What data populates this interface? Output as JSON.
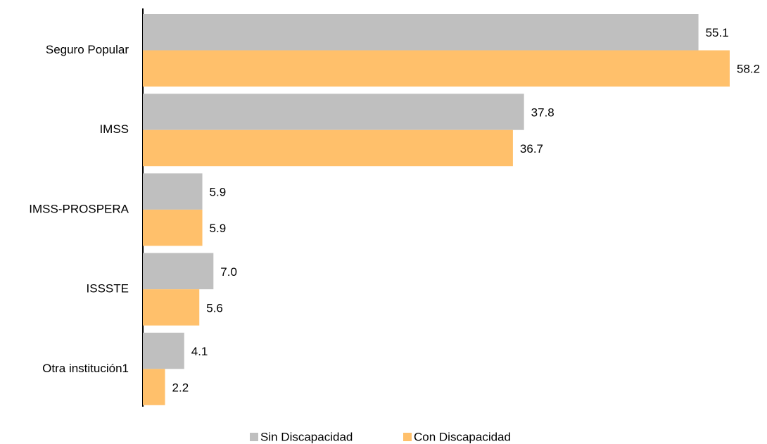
{
  "chart_data": {
    "type": "bar",
    "orientation": "horizontal",
    "categories": [
      "Seguro Popular",
      "IMSS",
      "IMSS-PROSPERA",
      "ISSSTE",
      "Otra institución1"
    ],
    "series": [
      {
        "name": "Sin Discapacidad",
        "color": "#bfbfbf",
        "values": [
          55.1,
          37.8,
          5.9,
          7.0,
          4.1
        ],
        "value_labels": [
          "55.1",
          "37.8",
          "5.9",
          "7.0",
          "4.1"
        ]
      },
      {
        "name": "Con Discapacidad",
        "color": "#ffc06b",
        "values": [
          58.2,
          36.7,
          5.9,
          5.6,
          2.2
        ],
        "value_labels": [
          "58.2",
          "36.7",
          "5.9",
          "5.6",
          "2.2"
        ]
      }
    ],
    "legend": "bottom"
  }
}
